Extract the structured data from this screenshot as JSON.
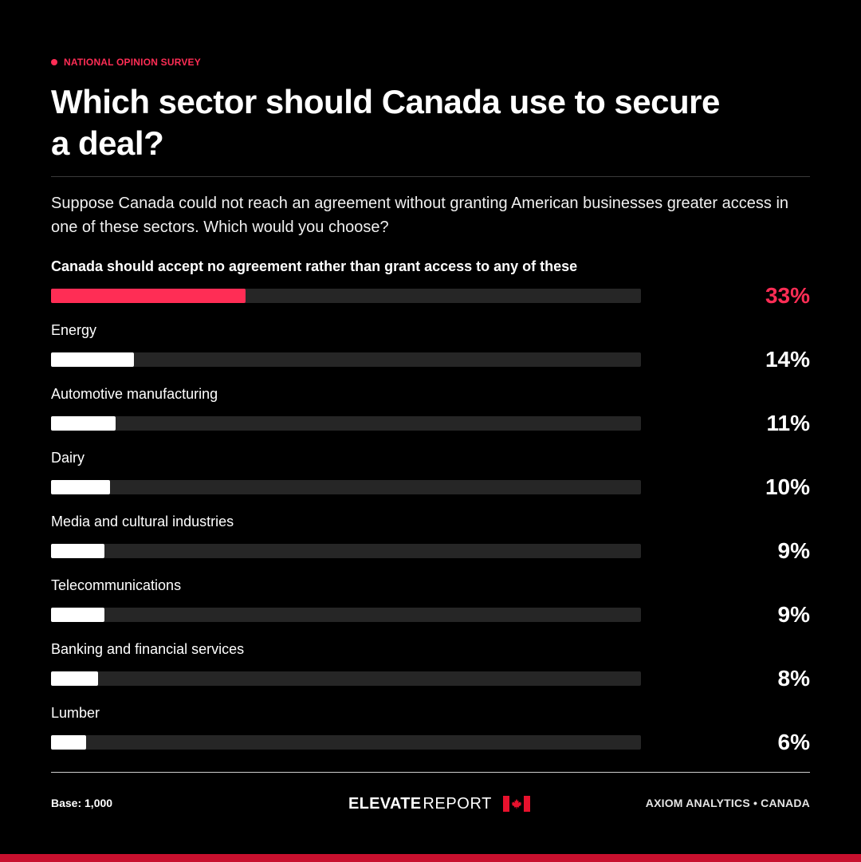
{
  "header": {
    "eyebrow": "NATIONAL OPINION SURVEY",
    "title": "Which sector should Canada use to secure a deal?",
    "question": "Suppose Canada could not reach an agreement without granting American businesses greater access in one of these sectors. Which would you choose?"
  },
  "colors": {
    "accent": "#ff2d55",
    "bar": "#ffffff",
    "track": "#262626",
    "background": "#000000",
    "strip": "#c8102e"
  },
  "chart_data": {
    "type": "bar",
    "orientation": "horizontal",
    "categories": [
      "Canada should accept no agreement rather than grant access to any of these",
      "Energy",
      "Automotive manufacturing",
      "Dairy",
      "Media and cultural industries",
      "Telecommunications",
      "Banking and financial services",
      "Lumber"
    ],
    "values": [
      33,
      14,
      11,
      10,
      9,
      9,
      8,
      6
    ],
    "value_labels": [
      "33%",
      "14%",
      "11%",
      "10%",
      "9%",
      "9%",
      "8%",
      "6%"
    ],
    "highlight_index": 0,
    "xlim": [
      0,
      100
    ],
    "grid": false,
    "legend": "none"
  },
  "footer": {
    "base": "Base: 1,000",
    "brand_bold": "ELEVATE",
    "brand_light": "REPORT",
    "source": "AXIOM ANALYTICS • CANADA"
  },
  "icons": {
    "eyebrow": "dot-icon",
    "flag": "canada-flag-icon"
  }
}
